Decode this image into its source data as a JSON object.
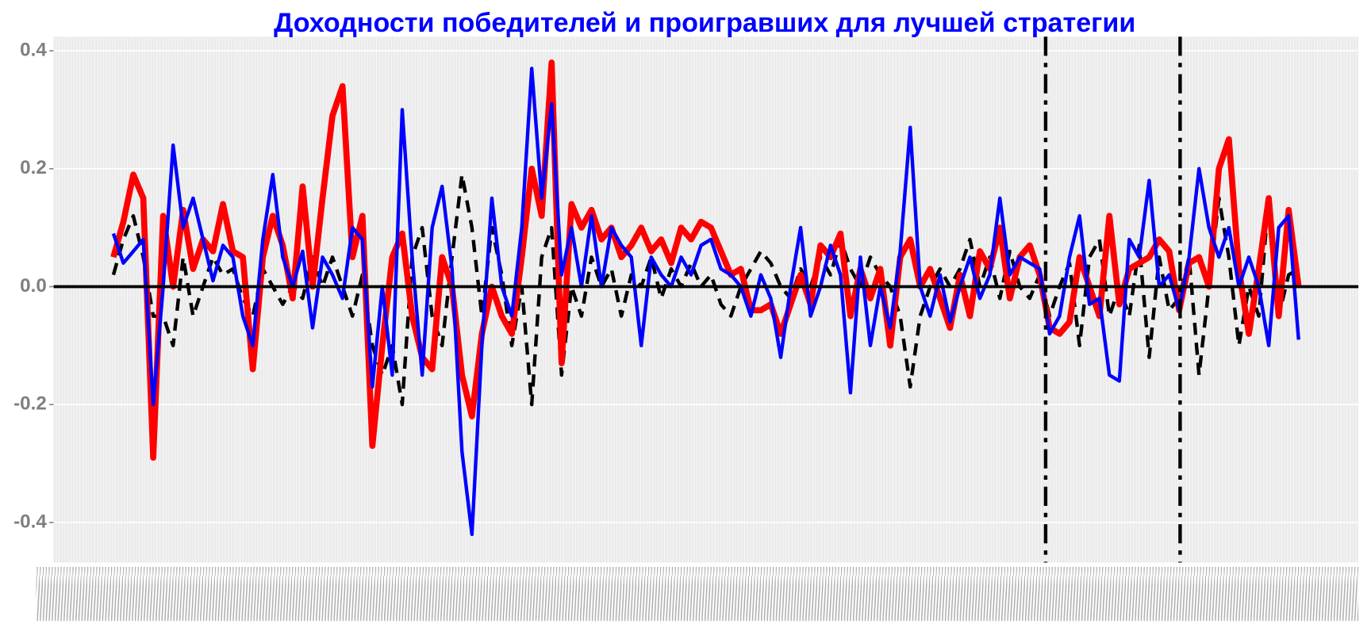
{
  "chart_data": {
    "type": "line",
    "title": "Доходности победителей и проигравших для лучшей стратегии",
    "xlim": [
      -6,
      125
    ],
    "ylim": [
      -0.468,
      0.424
    ],
    "yticks": [
      -0.4,
      -0.2,
      {
        "value": 0,
        "label": "0.0"
      },
      0.2,
      0.4
    ],
    "hline": 0,
    "vlines": [
      93.6,
      107.1
    ],
    "grid": true,
    "series": [
      {
        "color": "#000000",
        "style": "dashed",
        "values": [
          0.02,
          0.08,
          0.12,
          0.05,
          -0.05,
          -0.05,
          -0.1,
          0.05,
          -0.05,
          0.0,
          0.05,
          0.02,
          0.03,
          -0.02,
          -0.05,
          0.03,
          0.0,
          -0.03,
          0.0,
          -0.02,
          0.05,
          0.0,
          0.05,
          0.0,
          -0.05,
          0.02,
          -0.1,
          -0.15,
          -0.1,
          -0.2,
          0.05,
          0.1,
          -0.05,
          -0.1,
          0.05,
          0.19,
          0.1,
          -0.05,
          0.1,
          0.02,
          -0.1,
          0.0,
          -0.2,
          0.05,
          0.1,
          -0.15,
          0.0,
          -0.05,
          0.05,
          0.0,
          0.03,
          -0.05,
          0.02,
          0.0,
          0.05,
          -0.02,
          0.03,
          0.0,
          0.04,
          0.0,
          0.02,
          -0.03,
          -0.05,
          0.0,
          0.03,
          0.06,
          0.04,
          0.0,
          -0.02,
          0.03,
          0.0,
          0.05,
          0.02,
          0.08,
          0.03,
          0.0,
          0.05,
          0.02,
          0.0,
          -0.05,
          -0.17,
          -0.05,
          0.0,
          0.03,
          0.0,
          0.03,
          0.08,
          0.0,
          0.05,
          -0.02,
          0.06,
          0.0,
          -0.02,
          0.02,
          -0.05,
          0.0,
          0.04,
          -0.1,
          0.05,
          0.08,
          -0.05,
          0.0,
          -0.05,
          0.07,
          -0.12,
          0.05,
          -0.04,
          -0.02,
          0.05,
          -0.15,
          0.0,
          0.15,
          0.05,
          -0.1,
          0.0,
          -0.05,
          0.15,
          -0.05,
          0.02,
          0.03
        ]
      },
      {
        "color": "#ff0000",
        "style": "thick",
        "values": [
          0.05,
          0.11,
          0.19,
          0.15,
          -0.29,
          0.12,
          0.0,
          0.13,
          0.03,
          0.08,
          0.06,
          0.14,
          0.06,
          0.05,
          -0.14,
          0.05,
          0.12,
          0.07,
          -0.02,
          0.17,
          0.0,
          0.15,
          0.29,
          0.34,
          0.05,
          0.12,
          -0.27,
          -0.1,
          0.05,
          0.09,
          -0.05,
          -0.12,
          -0.14,
          0.05,
          0.0,
          -0.15,
          -0.22,
          -0.08,
          0.0,
          -0.05,
          -0.08,
          0.05,
          0.2,
          0.12,
          0.38,
          -0.13,
          0.14,
          0.1,
          0.13,
          0.08,
          0.1,
          0.05,
          0.07,
          0.1,
          0.06,
          0.08,
          0.04,
          0.1,
          0.08,
          0.11,
          0.1,
          0.06,
          0.02,
          0.03,
          -0.04,
          -0.04,
          -0.03,
          -0.08,
          -0.03,
          0.02,
          -0.03,
          0.07,
          0.05,
          0.09,
          -0.05,
          0.03,
          -0.02,
          0.03,
          -0.1,
          0.05,
          0.08,
          0.0,
          0.03,
          -0.02,
          -0.07,
          0.02,
          -0.05,
          0.06,
          0.03,
          0.1,
          -0.02,
          0.05,
          0.07,
          0.02,
          -0.07,
          -0.08,
          -0.06,
          0.05,
          0.0,
          -0.05,
          0.12,
          -0.03,
          0.03,
          0.04,
          0.05,
          0.08,
          0.06,
          -0.04,
          0.04,
          0.05,
          0.0,
          0.2,
          0.25,
          0.03,
          -0.08,
          0.03,
          0.15,
          -0.05,
          0.13,
          0.0
        ]
      },
      {
        "color": "#0000ff",
        "style": "solid",
        "values": [
          0.09,
          0.04,
          0.06,
          0.08,
          -0.2,
          0.0,
          0.24,
          0.1,
          0.15,
          0.08,
          0.01,
          0.07,
          0.05,
          -0.05,
          -0.1,
          0.08,
          0.19,
          0.05,
          0.0,
          0.06,
          -0.07,
          0.05,
          0.02,
          -0.02,
          0.1,
          0.08,
          -0.17,
          0.0,
          -0.15,
          0.3,
          0.05,
          -0.15,
          0.1,
          0.17,
          0.03,
          -0.28,
          -0.42,
          -0.1,
          0.15,
          0.0,
          -0.05,
          0.1,
          0.37,
          0.15,
          0.31,
          0.02,
          0.1,
          0.0,
          0.12,
          0.0,
          0.1,
          0.07,
          0.05,
          -0.1,
          0.05,
          0.02,
          0.0,
          0.05,
          0.02,
          0.07,
          0.08,
          0.03,
          0.02,
          0.0,
          -0.05,
          0.02,
          -0.02,
          -0.12,
          0.0,
          0.1,
          -0.05,
          0.0,
          0.07,
          0.02,
          -0.18,
          0.05,
          -0.1,
          0.0,
          -0.07,
          0.06,
          0.27,
          0.0,
          -0.05,
          0.02,
          -0.06,
          0.0,
          0.05,
          -0.02,
          0.02,
          0.15,
          0.02,
          0.05,
          0.04,
          0.03,
          -0.08,
          -0.05,
          0.05,
          0.12,
          -0.03,
          -0.02,
          -0.15,
          -0.16,
          0.08,
          0.05,
          0.18,
          0.0,
          0.02,
          -0.04,
          0.05,
          0.2,
          0.1,
          0.05,
          0.1,
          0.0,
          0.05,
          0.0,
          -0.1,
          0.1,
          0.12,
          -0.09
        ]
      }
    ]
  }
}
